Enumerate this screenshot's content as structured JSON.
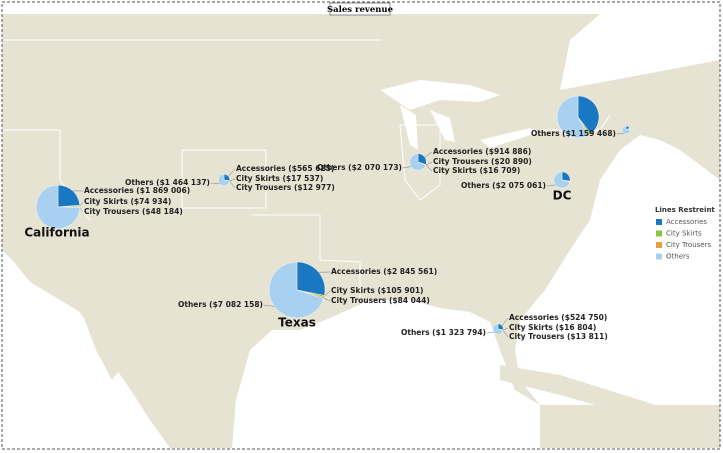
{
  "title": "Sales revenue",
  "legend": {
    "title": "Lines Restreint",
    "items": [
      {
        "name": "Accessories",
        "color": "#1a78c2"
      },
      {
        "name": "City Skirts",
        "color": "#8cc63f"
      },
      {
        "name": "City Trousers",
        "color": "#e6a23a"
      },
      {
        "name": "Others",
        "color": "#a8d0f0"
      }
    ]
  },
  "pies": [
    {
      "name": "California",
      "values": [
        1869006,
        74934,
        48184,
        5900000
      ],
      "value_labels": [
        "Accessories ($1 869 006)",
        "City Skirts ($74 934)",
        "City Trousers ($48 184)",
        null
      ]
    },
    {
      "values": [
        565625,
        17537,
        12977,
        1464137
      ],
      "value_labels": [
        "Accessories ($565 625)",
        "City Skirts ($17 537)",
        "City Trousers ($12 977)",
        "Others ($1 464 137)"
      ]
    },
    {
      "name": "Texas",
      "values": [
        2845561,
        105901,
        84044,
        7082158
      ],
      "value_labels": [
        "Accessories ($2 845 561)",
        "City Skirts ($105 901)",
        "City Trousers ($84 044)",
        "Others ($7 082 158)"
      ]
    },
    {
      "values": [
        914886,
        16709,
        20890,
        2070173
      ],
      "value_labels": [
        "Accessories ($914 886)",
        "City Skirts ($16 709)",
        "City Trousers ($20 890)",
        "Others ($2 070 173)"
      ]
    },
    {
      "values": [
        3000000,
        100000,
        80000,
        4400000
      ],
      "value_labels": [
        null,
        null,
        null,
        null
      ]
    },
    {
      "values": [
        250000,
        10000,
        8000,
        1159468
      ],
      "value_labels": [
        null,
        null,
        null,
        "Others ($1 159 468)"
      ]
    },
    {
      "name": "DC",
      "values": [
        800000,
        30000,
        25000,
        2075061
      ],
      "value_labels": [
        null,
        null,
        null,
        "Others ($2 075 061)"
      ]
    },
    {
      "values": [
        524750,
        16804,
        13811,
        1323794
      ],
      "value_labels": [
        "Accessories ($524 750)",
        "City Skirts ($16 804)",
        "City Trousers ($13 811)",
        "Others ($1 323 794)"
      ]
    }
  ]
}
